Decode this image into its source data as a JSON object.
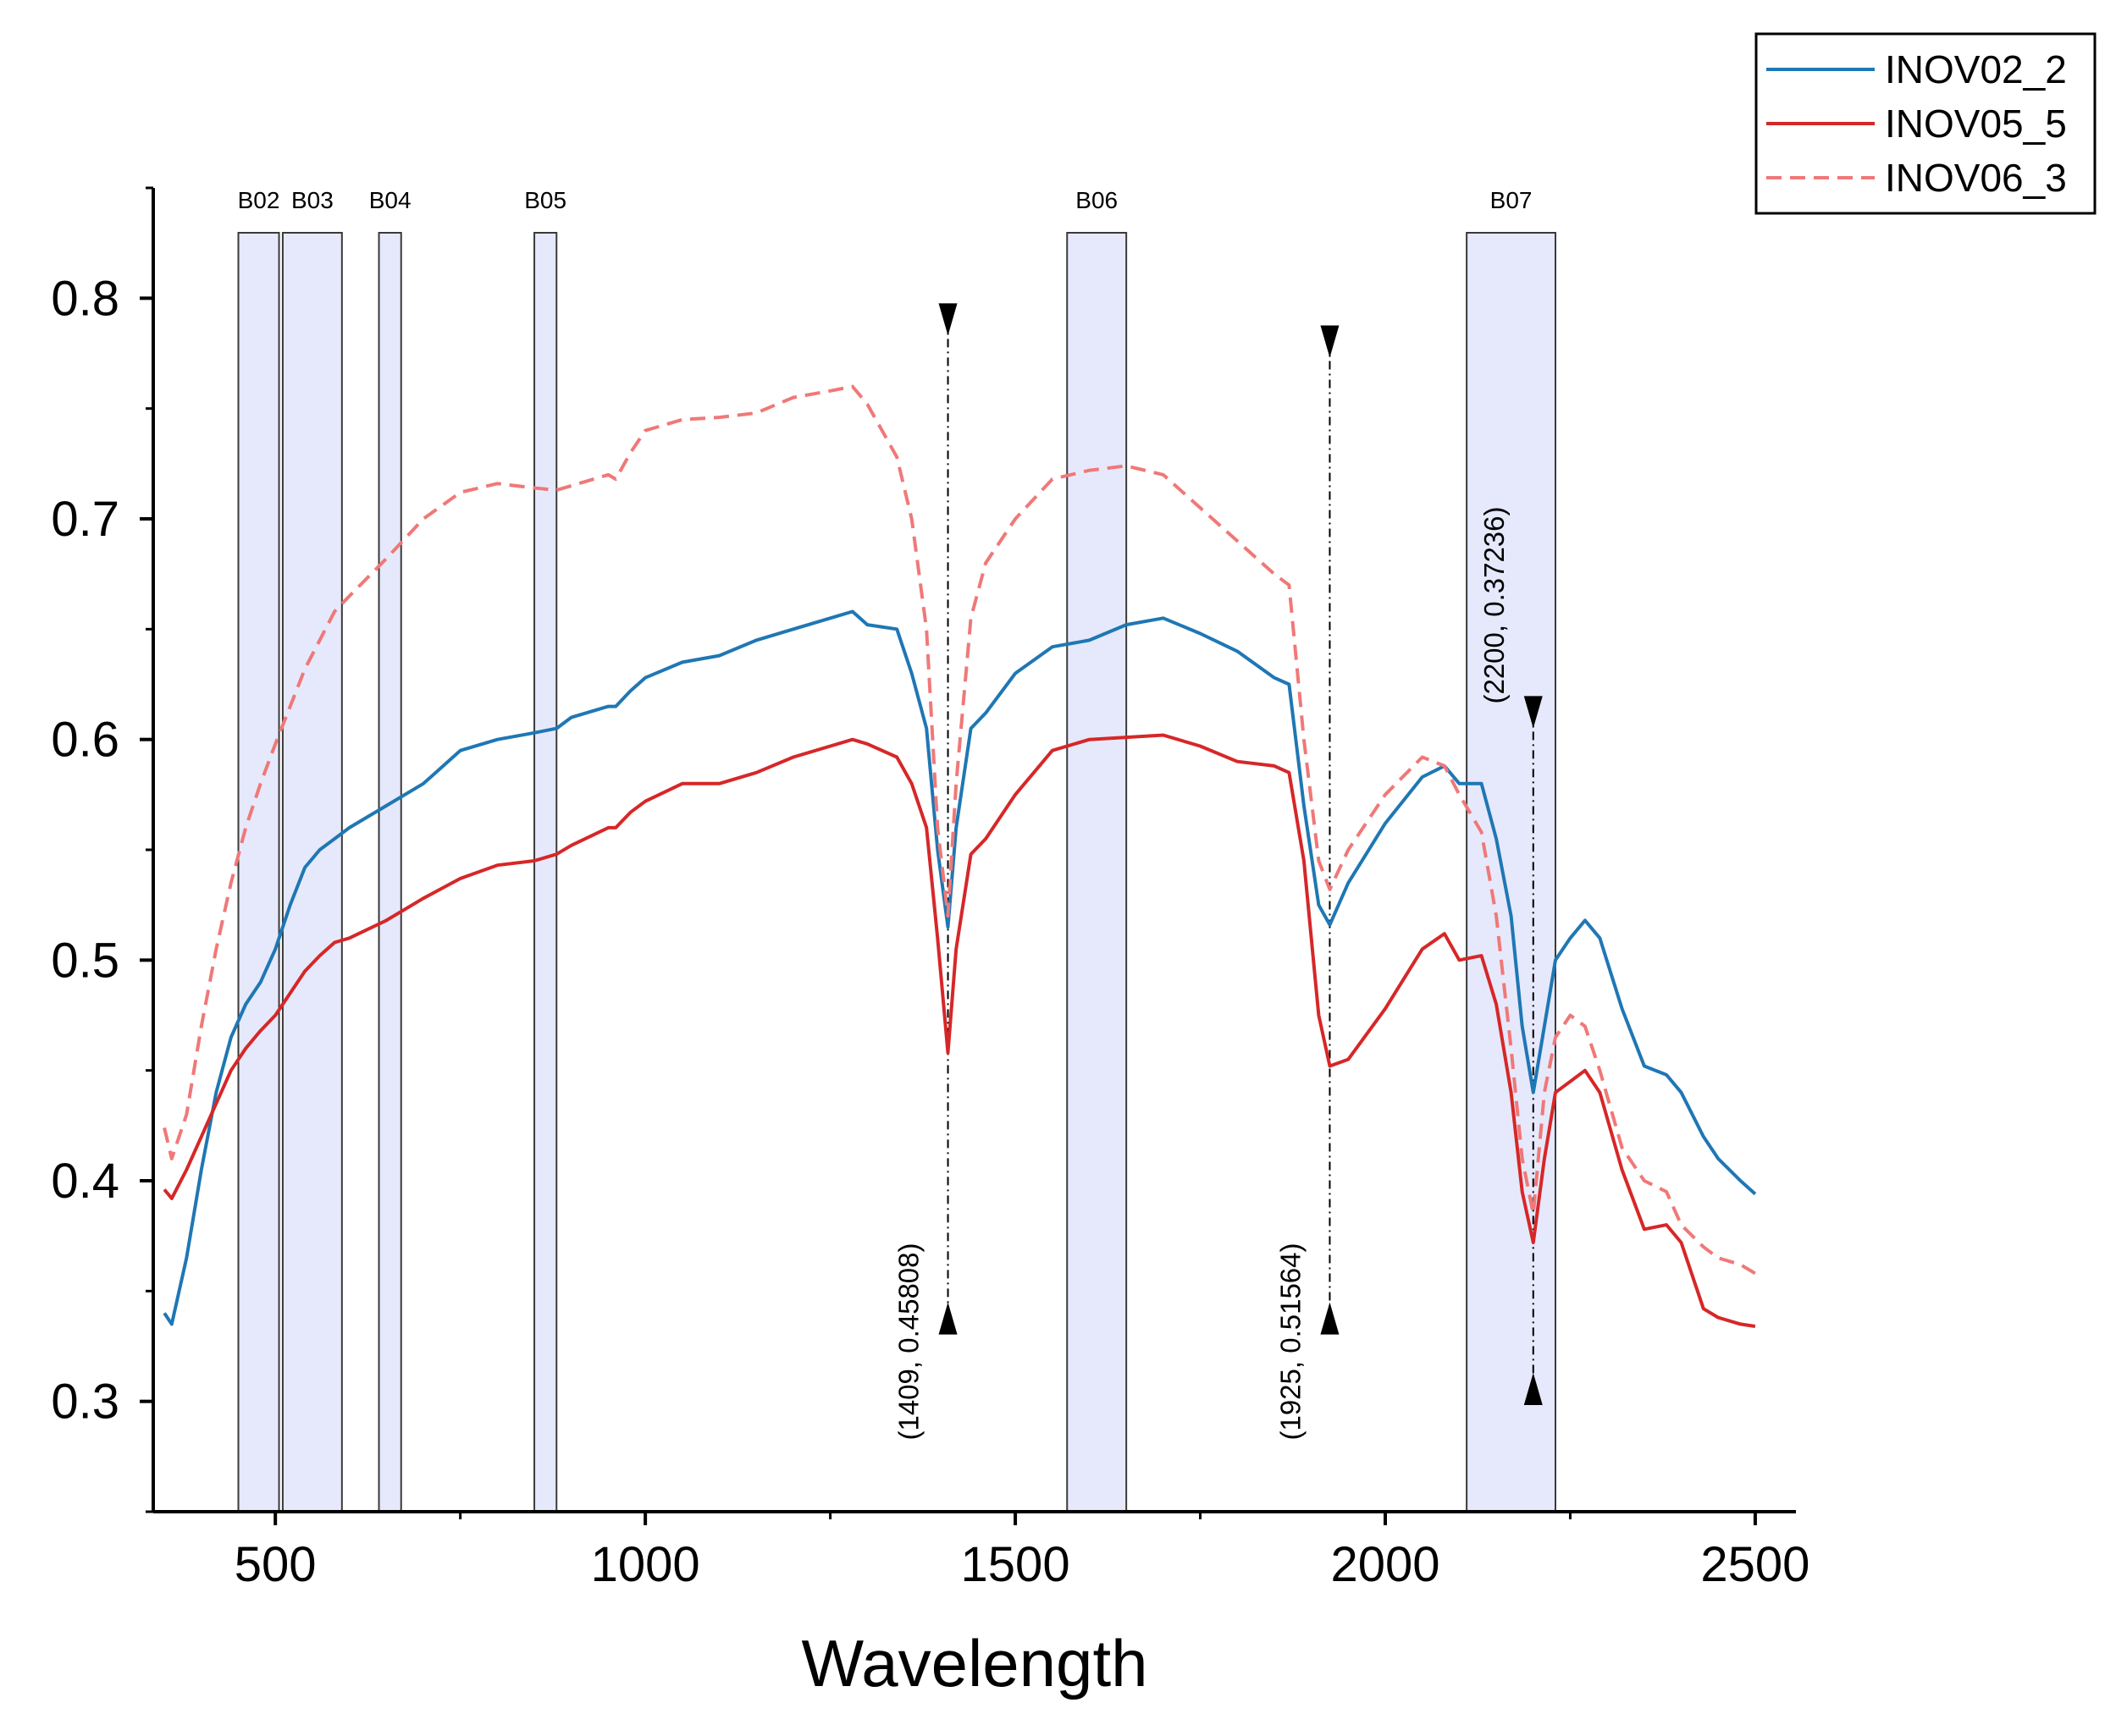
{
  "chart_data": {
    "type": "line",
    "title": "",
    "xlabel": "Wavelength",
    "ylabel": "",
    "xlim": [
      335,
      2555
    ],
    "ylim": [
      0.25,
      0.85
    ],
    "x_ticks": [
      500,
      1000,
      1500,
      2000,
      2500
    ],
    "x_tick_labels": [
      "500",
      "1000",
      "1500",
      "2000",
      "2500"
    ],
    "y_ticks": [
      0.3,
      0.4,
      0.5,
      0.6,
      0.7,
      0.8
    ],
    "y_tick_labels": [
      "0.3",
      "0.4",
      "0.5",
      "0.6",
      "0.7",
      "0.8"
    ],
    "legend_position": "top-right",
    "bands": [
      {
        "name": "B02",
        "x0": 450,
        "x1": 505
      },
      {
        "name": "B03",
        "x0": 510,
        "x1": 590
      },
      {
        "name": "B04",
        "x0": 640,
        "x1": 670
      },
      {
        "name": "B05",
        "x0": 850,
        "x1": 880
      },
      {
        "name": "B06",
        "x0": 1570,
        "x1": 1650
      },
      {
        "name": "B07",
        "x0": 2110,
        "x1": 2230
      }
    ],
    "series": [
      {
        "name": "INOV02_2",
        "color": "#1f77b4",
        "style": "solid",
        "x": [
          350,
          360,
          380,
          400,
          420,
          440,
          460,
          480,
          500,
          520,
          540,
          560,
          580,
          600,
          650,
          700,
          750,
          800,
          850,
          880,
          900,
          950,
          960,
          980,
          1000,
          1050,
          1100,
          1150,
          1200,
          1250,
          1280,
          1300,
          1340,
          1360,
          1380,
          1395,
          1409,
          1420,
          1440,
          1460,
          1500,
          1550,
          1600,
          1650,
          1700,
          1750,
          1800,
          1850,
          1870,
          1890,
          1910,
          1925,
          1950,
          2000,
          2050,
          2080,
          2100,
          2130,
          2150,
          2170,
          2185,
          2200,
          2215,
          2230,
          2250,
          2270,
          2290,
          2320,
          2350,
          2380,
          2400,
          2430,
          2450,
          2480,
          2500
        ],
        "values": [
          0.34,
          0.335,
          0.365,
          0.405,
          0.44,
          0.465,
          0.48,
          0.49,
          0.505,
          0.525,
          0.542,
          0.55,
          0.555,
          0.56,
          0.57,
          0.58,
          0.595,
          0.6,
          0.603,
          0.605,
          0.61,
          0.615,
          0.615,
          0.622,
          0.628,
          0.635,
          0.638,
          0.645,
          0.65,
          0.655,
          0.658,
          0.652,
          0.65,
          0.63,
          0.605,
          0.55,
          0.515,
          0.56,
          0.605,
          0.612,
          0.63,
          0.642,
          0.645,
          0.652,
          0.655,
          0.648,
          0.64,
          0.628,
          0.625,
          0.57,
          0.525,
          0.516,
          0.535,
          0.562,
          0.583,
          0.588,
          0.58,
          0.58,
          0.555,
          0.52,
          0.47,
          0.44,
          0.47,
          0.5,
          0.51,
          0.518,
          0.51,
          0.478,
          0.452,
          0.448,
          0.44,
          0.42,
          0.41,
          0.4,
          0.394
        ]
      },
      {
        "name": "INOV05_5",
        "color": "#d62728",
        "style": "solid",
        "x": [
          350,
          360,
          380,
          400,
          420,
          440,
          460,
          480,
          500,
          520,
          540,
          560,
          580,
          600,
          650,
          700,
          750,
          800,
          850,
          880,
          900,
          950,
          960,
          980,
          1000,
          1050,
          1100,
          1150,
          1200,
          1250,
          1280,
          1300,
          1340,
          1360,
          1380,
          1395,
          1409,
          1420,
          1440,
          1460,
          1500,
          1550,
          1600,
          1650,
          1700,
          1750,
          1800,
          1850,
          1870,
          1890,
          1910,
          1925,
          1950,
          2000,
          2050,
          2080,
          2100,
          2130,
          2150,
          2170,
          2185,
          2200,
          2215,
          2230,
          2250,
          2270,
          2290,
          2320,
          2350,
          2380,
          2400,
          2430,
          2450,
          2480,
          2500
        ],
        "values": [
          0.396,
          0.392,
          0.405,
          0.42,
          0.435,
          0.45,
          0.46,
          0.468,
          0.475,
          0.485,
          0.495,
          0.502,
          0.508,
          0.51,
          0.518,
          0.528,
          0.537,
          0.543,
          0.545,
          0.548,
          0.552,
          0.56,
          0.56,
          0.567,
          0.572,
          0.58,
          0.58,
          0.585,
          0.592,
          0.597,
          0.6,
          0.598,
          0.592,
          0.58,
          0.56,
          0.51,
          0.458,
          0.505,
          0.548,
          0.555,
          0.575,
          0.595,
          0.6,
          0.601,
          0.602,
          0.597,
          0.59,
          0.588,
          0.585,
          0.545,
          0.475,
          0.452,
          0.455,
          0.478,
          0.505,
          0.512,
          0.5,
          0.502,
          0.48,
          0.44,
          0.395,
          0.372,
          0.41,
          0.44,
          0.445,
          0.45,
          0.44,
          0.405,
          0.378,
          0.38,
          0.372,
          0.342,
          0.338,
          0.335,
          0.334
        ]
      },
      {
        "name": "INOV06_3",
        "color": "#f07878",
        "style": "dashed",
        "x": [
          350,
          360,
          380,
          400,
          420,
          440,
          460,
          480,
          500,
          520,
          540,
          560,
          580,
          600,
          650,
          700,
          750,
          800,
          850,
          880,
          900,
          950,
          960,
          980,
          1000,
          1050,
          1100,
          1150,
          1200,
          1250,
          1280,
          1300,
          1340,
          1360,
          1380,
          1395,
          1409,
          1420,
          1440,
          1460,
          1500,
          1550,
          1600,
          1650,
          1700,
          1750,
          1800,
          1850,
          1870,
          1890,
          1910,
          1925,
          1950,
          2000,
          2050,
          2080,
          2100,
          2130,
          2150,
          2170,
          2185,
          2200,
          2215,
          2230,
          2250,
          2270,
          2290,
          2320,
          2350,
          2380,
          2400,
          2430,
          2450,
          2480,
          2500
        ],
        "values": [
          0.424,
          0.41,
          0.43,
          0.47,
          0.505,
          0.535,
          0.56,
          0.58,
          0.598,
          0.615,
          0.632,
          0.645,
          0.658,
          0.665,
          0.682,
          0.7,
          0.712,
          0.716,
          0.714,
          0.713,
          0.715,
          0.72,
          0.718,
          0.73,
          0.74,
          0.745,
          0.746,
          0.748,
          0.755,
          0.758,
          0.76,
          0.752,
          0.728,
          0.7,
          0.65,
          0.56,
          0.52,
          0.58,
          0.655,
          0.68,
          0.7,
          0.718,
          0.722,
          0.724,
          0.72,
          0.705,
          0.69,
          0.675,
          0.67,
          0.6,
          0.545,
          0.532,
          0.55,
          0.575,
          0.592,
          0.588,
          0.575,
          0.558,
          0.52,
          0.46,
          0.41,
          0.385,
          0.44,
          0.465,
          0.475,
          0.47,
          0.45,
          0.415,
          0.4,
          0.395,
          0.38,
          0.37,
          0.365,
          0.362,
          0.358
        ]
      }
    ],
    "annotations": [
      {
        "x": 1409,
        "y_top": 0.79,
        "y_bottom": 0.338,
        "label": "(1409, 0.45808)"
      },
      {
        "x": 1925,
        "y_top": 0.78,
        "y_bottom": 0.338,
        "label": "(1925, 0.51564)"
      },
      {
        "x": 2200,
        "y_top": 0.612,
        "y_bottom": 0.306,
        "label": "(2200, 0.37236)"
      }
    ]
  }
}
